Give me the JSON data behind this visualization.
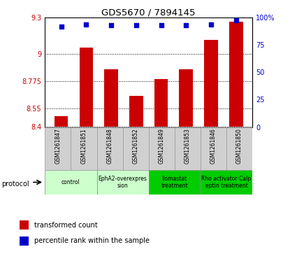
{
  "title": "GDS5670 / 7894145",
  "samples": [
    "GSM1261847",
    "GSM1261851",
    "GSM1261848",
    "GSM1261852",
    "GSM1261849",
    "GSM1261853",
    "GSM1261846",
    "GSM1261850"
  ],
  "transformed_counts": [
    8.487,
    9.055,
    8.878,
    8.655,
    8.793,
    8.873,
    9.12,
    9.27
  ],
  "percentile_ranks": [
    92,
    94,
    93,
    93,
    93,
    93,
    94,
    98
  ],
  "ylim_left": [
    8.4,
    9.3
  ],
  "ylim_right": [
    0,
    100
  ],
  "yticks_left": [
    8.4,
    8.55,
    8.775,
    9.0,
    9.3
  ],
  "yticks_right": [
    0,
    25,
    50,
    75,
    100
  ],
  "ytick_labels_left": [
    "8.4",
    "8.55",
    "8.775",
    "9",
    "9.3"
  ],
  "ytick_labels_right": [
    "0",
    "25",
    "50",
    "75",
    "100%"
  ],
  "bar_color": "#cc0000",
  "dot_color": "#0000cc",
  "protocols": [
    {
      "label": "control",
      "start": 0,
      "end": 2,
      "color": "#ccffcc"
    },
    {
      "label": "EphA2-overexpres\nsion",
      "start": 2,
      "end": 4,
      "color": "#ccffcc"
    },
    {
      "label": "Ilomastat\ntreatment",
      "start": 4,
      "end": 6,
      "color": "#00cc00"
    },
    {
      "label": "Rho activator Calp\neptin treatment",
      "start": 6,
      "end": 8,
      "color": "#00cc00"
    }
  ],
  "legend_labels": [
    "transformed count",
    "percentile rank within the sample"
  ],
  "legend_colors": [
    "#cc0000",
    "#0000cc"
  ],
  "protocol_label": "protocol"
}
